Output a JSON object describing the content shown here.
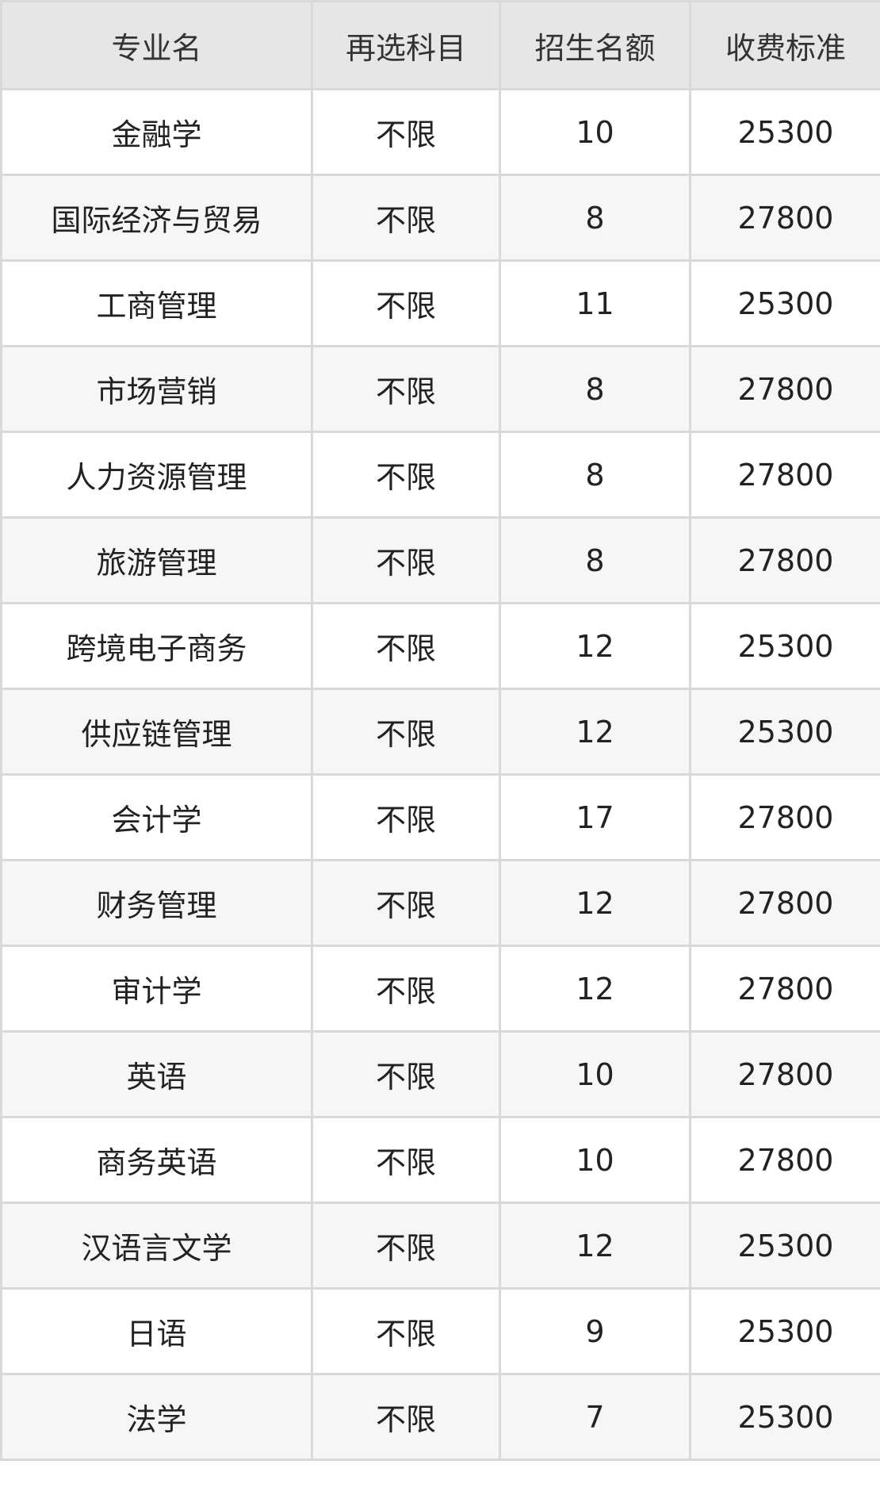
{
  "table": {
    "headers": [
      "专业名",
      "再选科目",
      "招生名额",
      "收费标准"
    ],
    "rows": [
      [
        "金融学",
        "不限",
        "10",
        "25300"
      ],
      [
        "国际经济与贸易",
        "不限",
        "8",
        "27800"
      ],
      [
        "工商管理",
        "不限",
        "11",
        "25300"
      ],
      [
        "市场营销",
        "不限",
        "8",
        "27800"
      ],
      [
        "人力资源管理",
        "不限",
        "8",
        "27800"
      ],
      [
        "旅游管理",
        "不限",
        "8",
        "27800"
      ],
      [
        "跨境电子商务",
        "不限",
        "12",
        "25300"
      ],
      [
        "供应链管理",
        "不限",
        "12",
        "25300"
      ],
      [
        "会计学",
        "不限",
        "17",
        "27800"
      ],
      [
        "财务管理",
        "不限",
        "12",
        "27800"
      ],
      [
        "审计学",
        "不限",
        "12",
        "27800"
      ],
      [
        "英语",
        "不限",
        "10",
        "27800"
      ],
      [
        "商务英语",
        "不限",
        "10",
        "27800"
      ],
      [
        "汉语言文学",
        "不限",
        "12",
        "25300"
      ],
      [
        "日语",
        "不限",
        "9",
        "25300"
      ],
      [
        "法学",
        "不限",
        "7",
        "25300"
      ]
    ]
  }
}
